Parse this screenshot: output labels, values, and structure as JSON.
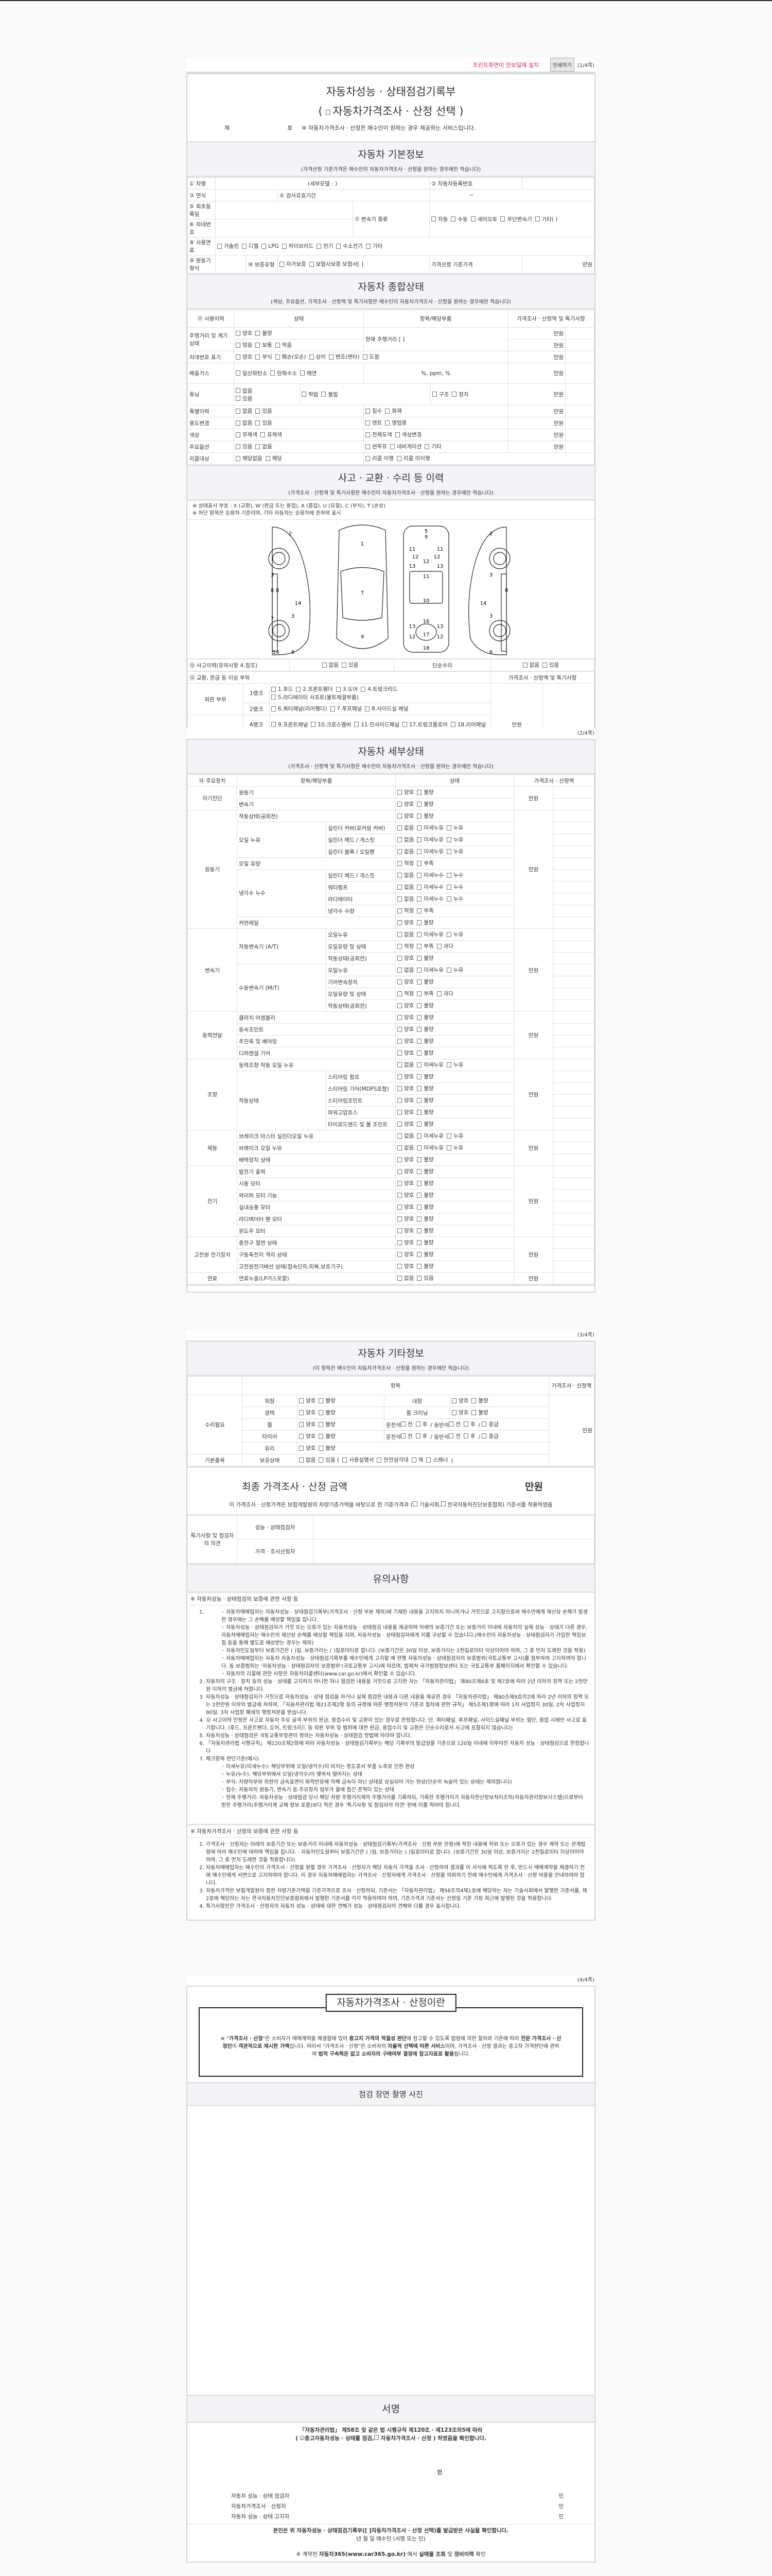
{
  "print_bar": {
    "notice": "프린트화면이 안보일때 설치",
    "print_button": "인쇄하기",
    "page": "(1/4쪽)"
  },
  "title": {
    "line1": "자동차성능 · 상태점검기록부",
    "open": "(",
    "option": "자동차가격조사 · 산정 선택",
    "close": ")",
    "no_prefix": "제",
    "no_suffix": "호",
    "notice": "※ 자동차가격조사 · 산정은 매수인이 원하는 경우 제공하는 서비스입니다."
  },
  "basic": {
    "heading": "자동차 기본정보",
    "sub": "(가격산정 기준가격은 매수인이 자동차가격조사 · 산정을 원하는 경우에만 적습니다)",
    "f1": "① 차명",
    "detail_model": "(세부모델 :                )",
    "f2": "② 자동차등록번호",
    "f3": "③ 연식",
    "f4": "④ 검사유효기간",
    "f4_value": "~",
    "f5": "⑤ 최초등록일",
    "f6": "⑥ 차대번호",
    "f7": "⑦ 변속기 종류",
    "trans": [
      "자동",
      "수동",
      "세미오토",
      "무단변속기",
      "기타(          )"
    ],
    "f8": "⑧ 사용연료",
    "fuel": [
      "가솔린",
      "디젤",
      "LPG",
      "하이브리드",
      "전기",
      "수소전기",
      "기타"
    ],
    "f9": "⑨ 원동기형식",
    "f10": "⑩ 보증유형",
    "warranty": [
      "자가보증",
      "보험사보증 보험사[              ]"
    ],
    "base_price": "가격산정 기준가격",
    "unit": "만원"
  },
  "overall": {
    "heading": "자동차 종합상태",
    "sub": "(색상, 주요옵션, 가격조사 · 산정액 및 특기사항은 매수인이 자동차가격조사 · 산정을 원하는 경우에만 적습니다)",
    "h": [
      "⑪ 사용이력",
      "상태",
      "항목/해당부품",
      "가격조사 · 산정액 및 특기사항"
    ],
    "unit": "만원",
    "mileage_label": "주행거리 및 계기상태",
    "mileage_a": [
      "양호",
      "불량"
    ],
    "mileage_b": [
      "많음",
      "보통",
      "적음"
    ],
    "mileage_item": "현재 주행거리 [                ]",
    "vin_label": "차대번호 표기",
    "vin": [
      "양호",
      "부식",
      "훼손(오손)",
      "상이",
      "변조(변타)",
      "도말"
    ],
    "gas_label": "배출가스",
    "gas": [
      "일산화탄소",
      "탄화수소",
      "매연"
    ],
    "gas_item": "%,      ppm,      %",
    "tuning_label": "튜닝",
    "tuning_a": [
      "없음",
      "있음"
    ],
    "tuning_b": [
      "적법",
      "불법"
    ],
    "tuning_c": [
      "구조",
      "장치"
    ],
    "rows": [
      {
        "label": "특별이력",
        "a": [
          "없음",
          "있음"
        ],
        "b": [
          "침수",
          "화재"
        ]
      },
      {
        "label": "용도변경",
        "a": [
          "없음",
          "있음"
        ],
        "b": [
          "렌트",
          "영업용"
        ]
      },
      {
        "label": "색상",
        "a": [
          "무채색",
          "유채색"
        ],
        "b": [
          "전체도색",
          "색상변경"
        ]
      },
      {
        "label": "주요옵션",
        "a": [
          "있음",
          "없음"
        ],
        "b": [
          "썬루프",
          "네비게이션",
          "기타"
        ]
      }
    ],
    "recall_label": "리콜대상",
    "recall_a": [
      "해당없음",
      "해당"
    ],
    "recall_b": [
      "리콜 이행",
      "리콜 미이행"
    ]
  },
  "accident": {
    "heading": "사고 · 교환 · 수리 등 이력",
    "sub": "(가격조사 · 산정액 및 특기사항은 매수인이 자동차가격조사 · 산정을 원하는 경우에만 적습니다)",
    "note1": "※ 상태표시 부호 : X (교환), W (판금 또는 용접), A (흠집), U (요철), C (부식), T (손상)",
    "note2": "※ 하단 항목은 승용차 기준이며, 기타 자동차는 승용차에 준하여 표시",
    "parts": [
      "1",
      "2",
      "3",
      "4",
      "5",
      "6",
      "7",
      "8",
      "9",
      "10",
      "11",
      "12",
      "13",
      "14",
      "15",
      "16",
      "17",
      "18",
      "19"
    ],
    "history_label": "⑫ 사고이력(유의사항 4.참조)",
    "history": [
      "없음",
      "있음"
    ],
    "simple_label": "단순수리",
    "simple": [
      "없음",
      "있음"
    ],
    "parts_label": "⑬ 교환, 판금 등 이상 부위",
    "price_label": "가격조사 · 산정액 및 특기사항",
    "unit": "만원",
    "outer": "외판 부위",
    "frame": "주요 골격",
    "ranks": [
      {
        "rank": "1랭크",
        "items": [
          "1.후드",
          "2.프론트휀더",
          "3.도어",
          "4.트렁크리드",
          "5.라디에이터 서포트(볼트체결부품)"
        ]
      },
      {
        "rank": "2랭크",
        "items": [
          "6.쿼터패널(리어휀다)",
          "7.루프패널",
          "8.사이드실 패널"
        ]
      },
      {
        "rank": "A랭크",
        "items": [
          "9.프론트패널",
          "10.크로스멤버",
          "11.인사이드패널",
          "17.트렁크플로어",
          "18.리어패널"
        ]
      },
      {
        "rank": "B랭크",
        "items": [
          "12.사이드멤버",
          "13.휠하우스",
          "14.필러패널(",
          "A,",
          "B,",
          "C )",
          "19.패키지트레이"
        ]
      },
      {
        "rank": "C랭크",
        "items": [
          "15.대쉬패널",
          "16.플로어패널"
        ]
      }
    ]
  },
  "page2": "(2/4쪽)",
  "detail": {
    "heading": "자동차 세부상태",
    "sub": "(가격조사 · 산정액 및 특기사항은 매수인이 자동차가격조사 · 산정을 원하는 경우에만 적습니다)",
    "h": [
      "⑭ 주요장치",
      "항목/해당부품",
      "상태",
      "가격조사 · 산정액"
    ],
    "unit": "만원",
    "groups": [
      {
        "name": "자기진단",
        "items": [
          {
            "label": "원동기",
            "opts": [
              "양호",
              "불량"
            ]
          },
          {
            "label": "변속기",
            "opts": [
              "양호",
              "불량"
            ]
          }
        ]
      },
      {
        "name": "원동기",
        "items": [
          {
            "label": "작동상태(공회전)",
            "opts": [
              "양호",
              "불량"
            ]
          },
          {
            "label": "오일 누유",
            "subs": [
              {
                "label": "실린더 커버(로커암 커버)",
                "opts": [
                  "없음",
                  "미세누유",
                  "누유"
                ]
              },
              {
                "label": "실린더 헤드 / 개스킷",
                "opts": [
                  "없음",
                  "미세누유",
                  "누유"
                ]
              },
              {
                "label": "실린더 블록 / 오일팬",
                "opts": [
                  "없음",
                  "미세누유",
                  "누유"
                ]
              }
            ]
          },
          {
            "label": "오일 유량",
            "opts": [
              "적정",
              "부족"
            ]
          },
          {
            "label": "냉각수 누수",
            "subs": [
              {
                "label": "실린더 헤드 / 개스킷",
                "opts": [
                  "없음",
                  "미세누수",
                  "누수"
                ]
              },
              {
                "label": "워터펌프",
                "opts": [
                  "없음",
                  "미세누수",
                  "누수"
                ]
              },
              {
                "label": "라디에이터",
                "opts": [
                  "없음",
                  "미세누수",
                  "누수"
                ]
              },
              {
                "label": "냉각수 수량",
                "opts": [
                  "적정",
                  "부족"
                ]
              }
            ]
          },
          {
            "label": "커먼레일",
            "opts": [
              "양호",
              "불량"
            ]
          }
        ]
      },
      {
        "name": "변속기",
        "items": [
          {
            "label": "자동변속기 (A/T)",
            "subs": [
              {
                "label": "오일누유",
                "opts": [
                  "없음",
                  "미세누유",
                  "누유"
                ]
              },
              {
                "label": "오일유량 및 상태",
                "opts": [
                  "적정",
                  "부족",
                  "과다"
                ]
              },
              {
                "label": "작동상태(공회전)",
                "opts": [
                  "양호",
                  "불량"
                ]
              }
            ]
          },
          {
            "label": "수동변속기 (M/T)",
            "subs": [
              {
                "label": "오일누유",
                "opts": [
                  "없음",
                  "미세누유",
                  "누유"
                ]
              },
              {
                "label": "기어변속장치",
                "opts": [
                  "양호",
                  "불량"
                ]
              },
              {
                "label": "오일유량 및 상태",
                "opts": [
                  "적정",
                  "부족",
                  "과다"
                ]
              },
              {
                "label": "작동상태(공회전)",
                "opts": [
                  "양호",
                  "불량"
                ]
              }
            ]
          }
        ]
      },
      {
        "name": "동력전달",
        "items": [
          {
            "label": "클러치 어셈블리",
            "opts": [
              "양호",
              "불량"
            ]
          },
          {
            "label": "등속조인트",
            "opts": [
              "양호",
              "불량"
            ]
          },
          {
            "label": "추진축 및 베어링",
            "opts": [
              "양호",
              "불량"
            ]
          },
          {
            "label": "디퍼렌셜 기어",
            "opts": [
              "양호",
              "불량"
            ]
          }
        ]
      },
      {
        "name": "조향",
        "items": [
          {
            "label": "동력조향 작동 오일 누유",
            "opts": [
              "없음",
              "미세누유",
              "누유"
            ]
          },
          {
            "label": "작동상태",
            "subs": [
              {
                "label": "스티어링 펌프",
                "opts": [
                  "양호",
                  "불량"
                ]
              },
              {
                "label": "스티어링 기어(MDPS포함)",
                "opts": [
                  "양호",
                  "불량"
                ]
              },
              {
                "label": "스티어링조인트",
                "opts": [
                  "양호",
                  "불량"
                ]
              },
              {
                "label": "파워고압호스",
                "opts": [
                  "양호",
                  "불량"
                ]
              },
              {
                "label": "타이로드엔드 및 볼 조인트",
                "opts": [
                  "양호",
                  "불량"
                ]
              }
            ]
          }
        ]
      },
      {
        "name": "제동",
        "items": [
          {
            "label": "브레이크 마스터 실린더오일 누유",
            "opts": [
              "없음",
              "미세누유",
              "누유"
            ]
          },
          {
            "label": "브레이크 오일 누유",
            "opts": [
              "없음",
              "미세누유",
              "누유"
            ]
          },
          {
            "label": "배력장치 상태",
            "opts": [
              "양호",
              "불량"
            ]
          }
        ]
      },
      {
        "name": "전기",
        "items": [
          {
            "label": "발전기 출력",
            "opts": [
              "양호",
              "불량"
            ]
          },
          {
            "label": "시동 모터",
            "opts": [
              "양호",
              "불량"
            ]
          },
          {
            "label": "와이퍼 모터 기능",
            "opts": [
              "양호",
              "불량"
            ]
          },
          {
            "label": "실내송풍 모터",
            "opts": [
              "양호",
              "불량"
            ]
          },
          {
            "label": "라디에이터 팬 모터",
            "opts": [
              "양호",
              "불량"
            ]
          },
          {
            "label": "윈도우 모터",
            "opts": [
              "양호",
              "불량"
            ]
          }
        ]
      },
      {
        "name": "고전원 전기장치",
        "items": [
          {
            "label": "충전구 절연 상태",
            "opts": [
              "양호",
              "불량"
            ]
          },
          {
            "label": "구동축전지 격리 상태",
            "opts": [
              "양호",
              "불량"
            ]
          },
          {
            "label": "고전원전기배선 상태(접속단자,피복,보호기구)",
            "opts": [
              "양호",
              "불량"
            ]
          }
        ]
      },
      {
        "name": "연료",
        "items": [
          {
            "label": "연료누출(LP가스포함)",
            "opts": [
              "없음",
              "있음"
            ]
          }
        ]
      }
    ]
  },
  "page3": "(3/4쪽)",
  "etc": {
    "heading": "자동차 기타정보",
    "sub": "(이 항목은 매수인이 자동차가격조사 · 산정을 원하는 경우에만 적습니다)",
    "h_item": "항목",
    "h_price": "가격조사 · 산정액",
    "unit": "만원",
    "repair": "수리필요",
    "good_bad": [
      "양호",
      "불량"
    ],
    "exterior": "외장",
    "interior": "내장",
    "gloss": "광택",
    "room": "룸 크리닝",
    "wheel": "휠",
    "tire": "타이어",
    "glass": "유리",
    "seat_a": "운전석",
    "front": "전",
    "rear": "후",
    "sep": "/",
    "seat_b": "동반석",
    "emergency": "응급",
    "basic": "기본품목",
    "holding": "보유상태",
    "hold_a": [
      "없음"
    ],
    "hold_b": "있음 (",
    "hold_items": [
      "사용설명서",
      "안전삼각대",
      "잭",
      "스패너"
    ],
    "hold_close": ")"
  },
  "final": {
    "label": "최종 가격조사 · 산정 금액",
    "unit": "만원",
    "text1": "이 가격조사 · 산정가격은 보험개발원의 차량기준가액을 바탕으로 한 기준가격과 (",
    "opt1": "기술사회,",
    "opt2": "한국자동차진단보증협회) 기준서를 적용하였음"
  },
  "opinion": {
    "label": "특기사항 및 점검자의 의견",
    "inspector": "성능 · 상태점검자",
    "appraiser": "가격 · 조사산정자"
  },
  "caution": {
    "heading": "유의사항",
    "sec1": "※ 자동차성능 · 상태점검의 보증에 관한 사항 등",
    "s1_bullets": [
      "자동차매매업자는 자동차성능 · 상태점검기록부(가격조사 · 산정 부분 제외)에 기재된 내용을 고지하지 아니하거나 거짓으로 고지함으로써 매수인에게 재산상 손해가 발생한 경우에는 그 손해를 배상할 책임을 집니다.",
      "자동차성능 · 상태점검자가 거짓 또는 오류가 있는 자동차성능 · 상태점검 내용을 제공하여 아래의 보증기간 또는 보증거리 이내에 자동차의 실제 성능 · 상태가 다른 경우, 자동차매매업자는 매수인의 재산상 손해를 배상할 책임을 지며, 자동차성능 · 상태점검자에게 이를 구상할 수 있습니다.(매수인이 자동차성능 · 상태점검자가 가입한 책임보험 등을 통해 별도로 배상받는 경우는 제외)",
      "자동차인도일부터 보증기간은 (      )일, 보증거리는 (      )킬로미터로 합니다. (보증기간은 30일 이상, 보증거리는 2천킬로미터 이상이어야 하며, 그 중 먼저 도래한 것을 적용)",
      "자동차매매업자는 자동차 자동차성능 · 상태점검기록부를 매수인에게 고지할 때 현행 자동차성능 · 상태점검자의 보증범위(국토교통부 고시)를 첨부하여 고지하여야 합니다. 동 보증범위는 '자동차성능 · 상태점검자의 보증범위'(국토교통부 고시)에 따르며, 법제처 국가법령정보센터 또는 국토교통부 홈페이지에서 확인할 수 있습니다.",
      "자동차의 리콜에 관한 사항은 자동차리콜센터(www.car.go.kr)에서 확인할 수 있습니다."
    ],
    "s1_items": [
      "자동차의 구조 · 장치 등의 성능 · 상태를 고지하지 아니한 자나 점검한 내용을 거짓으로 고지한 자는 「자동차관리법」 제80조제6호 및 제7호에 따라 2년 이하의 징역 또는 2천만원 이하의 벌금에 처합니다.",
      "자동차성능 · 상태점검자가 거짓으로 자동차성능 · 상태 점검을 하거나 실제 점검한 내용과 다른 내용을 제공한 경우 「자동차관리법」 제80조제9호의2에 따라 2년 이하의 징역 또는 2천만원 이하의 벌금에 처하며, 「자동차관리법 제21조제2항 등의 규정에 따른 행정처분의 기준과 절차에 관한 규칙」 제5조제1항에 따라 1차 사업정지 30일, 2차 사업정지 90일, 3차 사업장 폐쇄의 행정처분을 받습니다.",
      "⑫ 사고이력 인정은 사고로 자동차 주요 골격 부위의 판금, 용접수리 및 교환이 있는 경우로 한정합니다. 단, 쿼터패널, 루프패널, 사이드실패널 부위는 절단, 용접 시에만 사고로 표기합니다. (후드, 프론트펜더, 도어, 트렁크리드 등 외판 부위 및 범퍼에 대한 판금, 용접수리 및 교환은 단순수리로서 사고에 포함되지 않습니다)",
      "자동차성능 · 상태점검은 국토교통부장관이 정하는 자동차성능 · 상태점검 방법에 따라야 합니다.",
      "「자동차관리법 시행규칙」 제120조제2항에 따라 자동차성능 · 상태점검기록부는 해당 기록부의 발급일을 기준으로 120일 이내에 이루어진 자동차 성능 · 상태점검으로 한정합니다",
      "체크항목 판단기준(예시)"
    ],
    "s7_bullets": [
      "미세누유(미세누수): 해당부위에 오일(냉각수)이 비치는 정도로서 부품 노후로 인한 현상",
      "누유(누수): 해당부위에서 오일(냉각수)이 맺혀서 떨어지는 상태",
      "부식: 차량하부와 외판의 금속표면이 화학반응에 의해 금속이 아닌 상태로 상실되어 가는 현상(단순히 녹슬어 있는 상태는 제외합니다)",
      "침수: 자동차의 원동기, 변속기 등 주요장치 일부가 물에 잠긴 흔적이 있는 상태",
      "현재 주행거리: 자동차성능 · 상태점검 당시 해당 차량 주행거리계의 주행거리를 기록하되, 기록한 주행거리가 자동차전산정보처리조직(자동차관리정보시스템)으로부터 받은 주행거리(주행거리계 교체 정보 포함)보다 적은 경우 '특기사항 및 점검자의 의견' 란에 이를 적어야 합니다."
    ],
    "sec2": "※ 자동차가격조사 · 산정의 보증에 관한 사항 등",
    "s2_items": [
      "가격조사 · 산정자는 아래의 보증기간 또는 보증거리 이내에 자동차성능 · 상태점검기록부(가격조사 · 산정 부분 한정)에 적힌 내용에 허위 또는 오류가 있는 경우 계약 또는 관계법령에 따라 매수인에 대하여 책임을 집니다. · 자동차인도일부터 보증기간은 (      )일, 보증거리는 (      )킬로미터로 합니다. (보증기간은 30일 이상, 보증거리는 2천킬로미터 이상이어야 하며, 그 중 먼저 도래한 것을 적용합니다)",
      "자동차매매업자는 매수인이 가격조사 · 산정을 원할 경우 가격조사 · 산정자가 해당 자동차 가격을 조사 · 산정하여 결과를 이 서식에 적도록 한 후, 반드시 매매계약을 체결하기 전에 매수인에게 서면으로 고지하여야 합니다. 이 경우 자동차매매업자는 가격조사 · 산정자에게 가격조사 · 산정을 의뢰하기 전에 매수인에게 가격조사 · 산정 비용을 안내하여야 합니다.",
      "자동차가격은 보험개발원이 정한 차량기준가액을 기준가격으로 조사 · 산정하되, 기준서는 「자동차관리법」 제58조의4제1호에 해당하는 자는 기술사회에서 발행한 기준서를, 제2호에 해당하는 자는 한국자동차진단보증협회에서 발행한 기준서를 각각 적용하여야 하며, 기준가격과 기준서는 산정일 기준 가장 최근에 발행된 것을 적용합니다.",
      "특기사항란은 가격조사 · 산정자의 자동차 성능 · 상태에 대한 견해가 성능 · 상태점검자의 견해와 다를 경우 표시합니다."
    ]
  },
  "page4": "(4/4쪽)",
  "about": {
    "title": "자동차가격조사 · 산정이란",
    "segments": [
      [
        "※ \"",
        0
      ],
      [
        "가격조사 · 산정",
        1
      ],
      [
        "\"은 소비자가 매매계약을 체결함에 있어 ",
        0
      ],
      [
        "중고차 가격의 적절성 판단",
        1
      ],
      [
        "에 참고할 수 있도록 법령에 의한 절차와 기준에 따라 ",
        0
      ],
      [
        "전문 가격조사 · 산정인",
        1
      ],
      [
        "이 ",
        0
      ],
      [
        "객관적으로 제시한 가액",
        1
      ],
      [
        "입니다. 따라서 \"가격조사 · 산정\"은 소비자의 ",
        0
      ],
      [
        "자율적 선택에 따른 서비스",
        1
      ],
      [
        "이며, 가격조사 · 산정 결과는 중고차 가격판단에 관하여 ",
        0
      ],
      [
        "법적 구속력은 없고 소비자의 구매여부 결정에 참고자료로 활용",
        1
      ],
      [
        "됩니다.",
        0
      ]
    ]
  },
  "photo": {
    "heading": "점검 장면 촬영 사진"
  },
  "sign": {
    "heading": "서명",
    "law": "「자동차관리법」 제58조 및 같은 법 시행규칙 제120조 · 제123조의5에 따라",
    "open": "(",
    "opt1": "중고자동차성능 · 상태를 점검,",
    "opt2": "자동차가격조사  ·  산정 ) 하였음을 확인합니다.",
    "seal": "인",
    "signers": [
      {
        "label": "자동차 성능 · 상태 점검자",
        "seal": "인"
      },
      {
        "label": "자동차가격조사  ·  산정자",
        "seal": "인"
      },
      {
        "label": "자동차 성능 · 상태 고지자",
        "seal": "인"
      }
    ],
    "confirm": "본인은 위 자동차성능  ·  상태점검기록부([   ]자동차가격조사  ·  산정 선택)를 발급받은 사실을 확인합니다.",
    "date": "년    월    일     매수인                (서명 또는 인)",
    "footer": [
      [
        "※ 계약전 ",
        0
      ],
      [
        "자동차365(www.car365.go.kr)",
        1
      ],
      [
        " 에서 ",
        0
      ],
      [
        "실매물 조회",
        1
      ],
      [
        " 및 ",
        0
      ],
      [
        "정비이력",
        1
      ],
      [
        " 확인",
        0
      ]
    ]
  }
}
